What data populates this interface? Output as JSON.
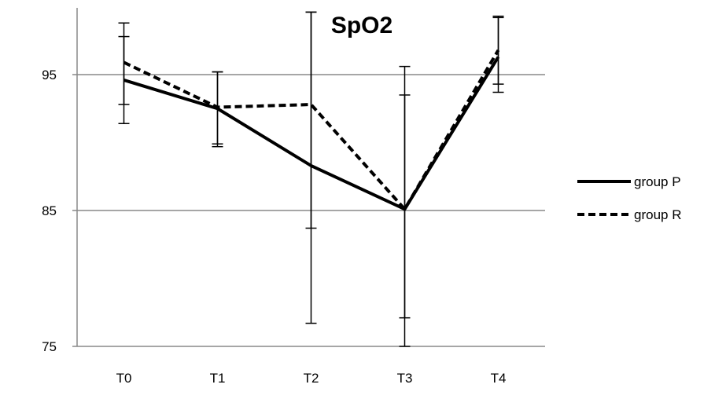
{
  "chart_data": {
    "type": "line",
    "title": "SpO2",
    "xlabel": "",
    "ylabel": "",
    "categories": [
      "T0",
      "T1",
      "T2",
      "T3",
      "T4"
    ],
    "ylim": [
      75,
      95
    ],
    "yticks": [
      75,
      85,
      95
    ],
    "grid": true,
    "legend_position": "right",
    "series": [
      {
        "name": "group P",
        "style": "solid",
        "color": "#000000",
        "values": [
          94.6,
          92.5,
          88.3,
          85.1,
          96.3
        ],
        "error_low": [
          91.4,
          89.7,
          76.7,
          75.0,
          93.7
        ],
        "error_high": [
          97.8,
          95.2,
          99.6,
          95.6,
          99.3
        ]
      },
      {
        "name": "group R",
        "style": "dashed",
        "color": "#000000",
        "values": [
          95.9,
          92.6,
          92.8,
          85.1,
          96.8
        ],
        "error_low": [
          92.8,
          89.9,
          83.7,
          77.1,
          94.3
        ],
        "error_high": [
          98.8,
          95.2,
          99.6,
          93.5,
          99.2
        ]
      }
    ]
  }
}
